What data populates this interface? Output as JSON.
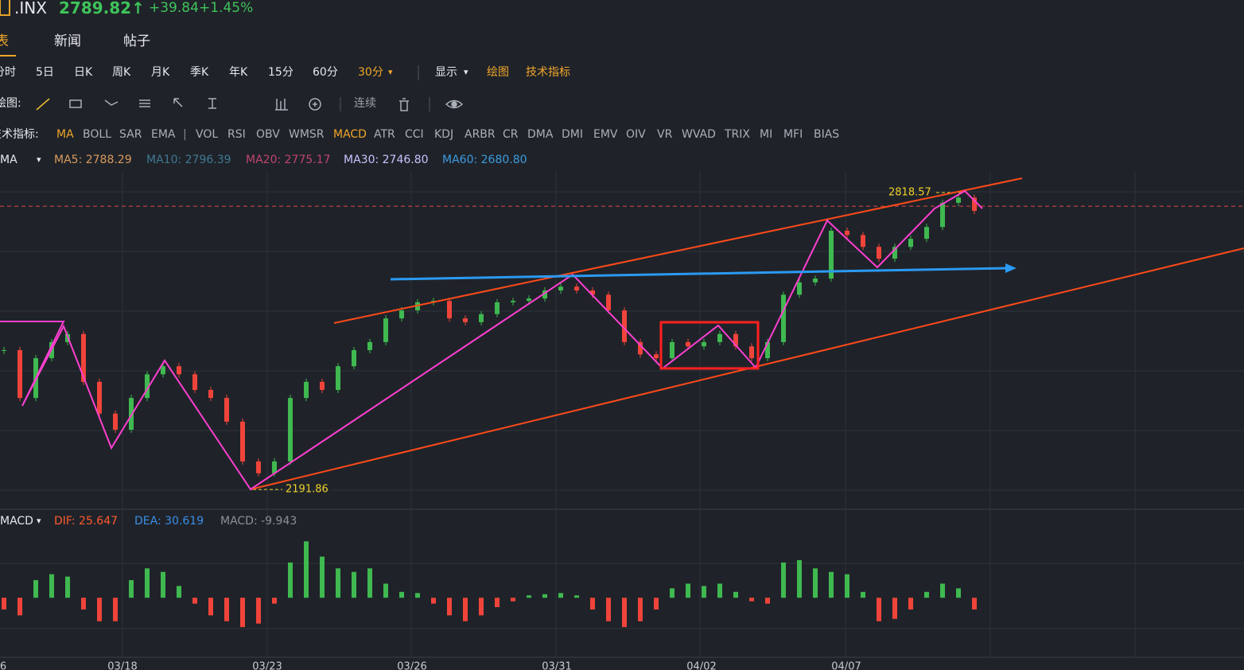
{
  "header": {
    "symbol": ".INX",
    "price": "2789.82↑",
    "change": "+39.84",
    "change_pct": "+1.45%"
  },
  "tabs": [
    "表",
    "新闻",
    "帖子"
  ],
  "periods": [
    "分时",
    "5日",
    "日K",
    "周K",
    "月K",
    "季K",
    "年K",
    "15分",
    "60分",
    "30分"
  ],
  "menu": [
    "显示",
    "绘图",
    "技术指标"
  ],
  "draw_tools": {
    "label": "绘图:",
    "continuous": "连续"
  },
  "indicators": {
    "label": "技术指标:",
    "items": [
      "MA",
      "BOLL",
      "SAR",
      "EMA",
      "VOL",
      "RSI",
      "OBV",
      "WMSR",
      "MACD",
      "ATR",
      "CCI",
      "KDJ",
      "ARBR",
      "CR",
      "DMA",
      "DMI",
      "EMV",
      "OIV",
      "VR",
      "WVAD",
      "TRIX",
      "MI",
      "MFI",
      "BIAS"
    ]
  },
  "ma_legend": {
    "name": "MA",
    "items": [
      {
        "text": "MA5: 2788.29",
        "color": "#d99a5e"
      },
      {
        "text": "MA10: 2796.39",
        "color": "#3f7892"
      },
      {
        "text": "MA20: 2775.17",
        "color": "#c0456e"
      },
      {
        "text": "MA30: 2746.80",
        "color": "#c9c2ff"
      },
      {
        "text": "MA60: 2680.80",
        "color": "#3d9be0"
      }
    ]
  },
  "macd_legend": {
    "name": "MACD",
    "items": [
      {
        "text": "DIF: 25.647",
        "color": "#ff5a2e"
      },
      {
        "text": "DEA: 30.619",
        "color": "#3a8ee6"
      },
      {
        "text": "MACD: -9.943",
        "color": "#8a9099"
      }
    ]
  },
  "chart_data": [
    {
      "type": "candlestick",
      "values": [
        2486,
        2385,
        2469,
        2503,
        2520,
        2419,
        2352,
        2318,
        2385,
        2435,
        2452,
        2435,
        2402,
        2385,
        2335,
        2251,
        2226,
        2251,
        2385,
        2419,
        2402,
        2452,
        2486,
        2503,
        2553,
        2570,
        2587,
        2590,
        2553,
        2545,
        2562,
        2587,
        2590,
        2595,
        2612,
        2620,
        2612,
        2603,
        2570,
        2503,
        2477,
        2469,
        2503,
        2494,
        2503,
        2520,
        2494,
        2469,
        2503,
        2603,
        2629,
        2637,
        2738,
        2729,
        2704,
        2679,
        2704,
        2721,
        2746,
        2797,
        2808,
        2780
      ],
      "ylim": [
        2150,
        2864
      ],
      "max_price": 2818.57,
      "min_price": 2191.86,
      "last_price": 2789.82,
      "up_color": "#3fb950",
      "down_color": "#f0443b",
      "x_labels": [
        "6",
        "03/18",
        "03/23",
        "03/26",
        "03/31",
        "04/02",
        "04/07"
      ]
    },
    {
      "type": "bar",
      "values": [
        -10,
        -15,
        15,
        20,
        18,
        -10,
        -20,
        -20,
        15,
        25,
        22,
        10,
        -5,
        -15,
        -20,
        -25,
        -22,
        -5,
        30,
        48,
        35,
        25,
        22,
        25,
        12,
        5,
        4,
        -5,
        -15,
        -20,
        -15,
        -8,
        -3,
        2,
        3,
        4,
        2,
        -10,
        -20,
        -25,
        -20,
        -10,
        8,
        12,
        10,
        12,
        5,
        -3,
        -5,
        30,
        32,
        25,
        22,
        20,
        5,
        -20,
        -18,
        -10,
        5,
        12,
        8,
        -9.943
      ],
      "ylim": [
        -50,
        55
      ],
      "up_color": "#3fb950",
      "down_color": "#f0443b"
    }
  ]
}
